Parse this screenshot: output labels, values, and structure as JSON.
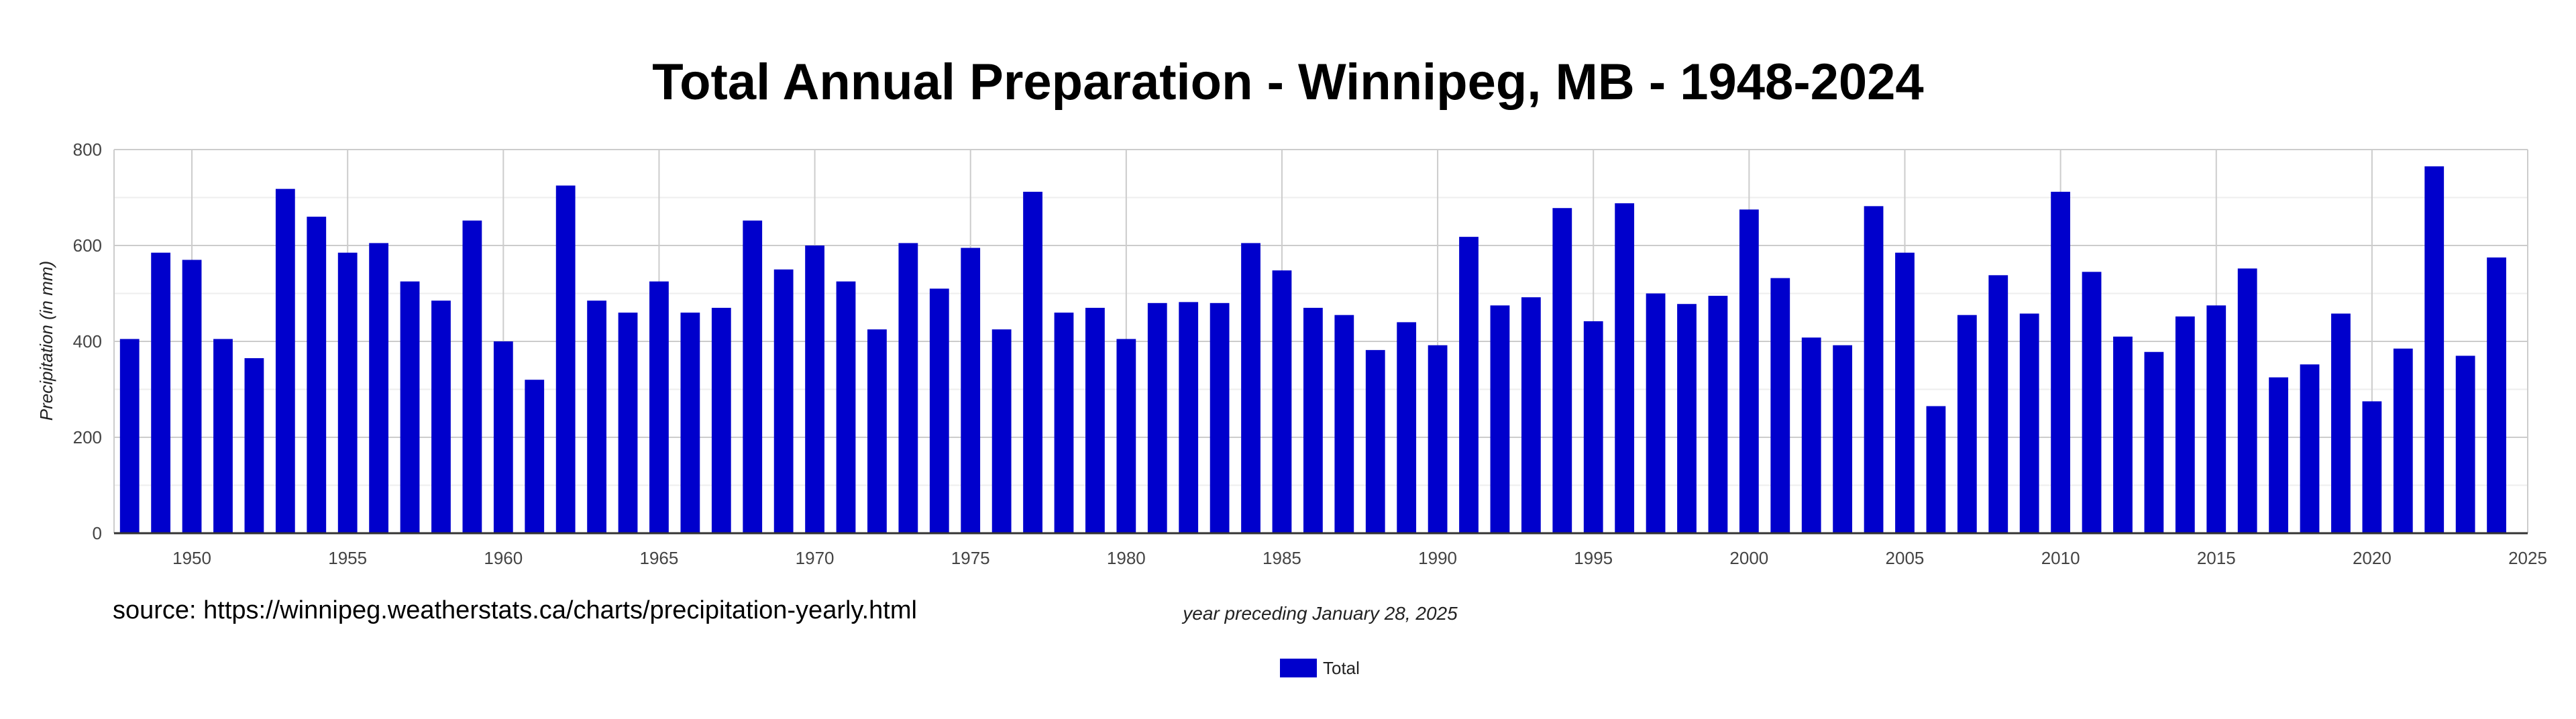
{
  "chart_data": {
    "type": "bar",
    "title": "Total Annual Preparation - Winnipeg, MB - 1948-2024",
    "xlabel": "year preceding January 28, 2025",
    "ylabel": "Precipitation (in mm)",
    "source": "source: https://winnipeg.weatherstats.ca/charts/precipitation-yearly.html",
    "x_ticks": [
      1950,
      1955,
      1960,
      1965,
      1970,
      1975,
      1980,
      1985,
      1990,
      1995,
      2000,
      2005,
      2010,
      2015,
      2020,
      2025
    ],
    "y_ticks": [
      0,
      200,
      400,
      600,
      800
    ],
    "xlim": [
      1947.5,
      2025
    ],
    "ylim": [
      0,
      800
    ],
    "grid": true,
    "legend": "bottom-center",
    "bar_color": "#0000cc",
    "series": [
      {
        "name": "Total",
        "x": [
          1948,
          1949,
          1950,
          1951,
          1952,
          1953,
          1954,
          1955,
          1956,
          1957,
          1958,
          1959,
          1960,
          1961,
          1962,
          1963,
          1964,
          1965,
          1966,
          1967,
          1968,
          1969,
          1970,
          1971,
          1972,
          1973,
          1974,
          1975,
          1976,
          1977,
          1978,
          1979,
          1980,
          1981,
          1982,
          1983,
          1984,
          1985,
          1986,
          1987,
          1988,
          1989,
          1990,
          1991,
          1992,
          1993,
          1994,
          1995,
          1996,
          1997,
          1998,
          1999,
          2000,
          2001,
          2002,
          2003,
          2004,
          2005,
          2006,
          2007,
          2008,
          2009,
          2010,
          2011,
          2012,
          2013,
          2014,
          2015,
          2016,
          2017,
          2018,
          2019,
          2020,
          2021,
          2022,
          2023,
          2024
        ],
        "values": [
          405,
          585,
          570,
          405,
          365,
          718,
          660,
          585,
          605,
          525,
          485,
          652,
          400,
          320,
          725,
          485,
          460,
          525,
          460,
          470,
          652,
          550,
          600,
          525,
          425,
          605,
          510,
          595,
          425,
          712,
          460,
          470,
          405,
          480,
          482,
          480,
          605,
          548,
          470,
          455,
          382,
          440,
          392,
          618,
          475,
          492,
          678,
          442,
          688,
          500,
          478,
          495,
          675,
          532,
          408,
          392,
          682,
          585,
          265,
          455,
          538,
          458,
          712,
          545,
          410,
          378,
          452,
          475,
          552,
          325,
          352,
          458,
          275,
          385,
          765,
          370,
          575
        ]
      }
    ]
  }
}
